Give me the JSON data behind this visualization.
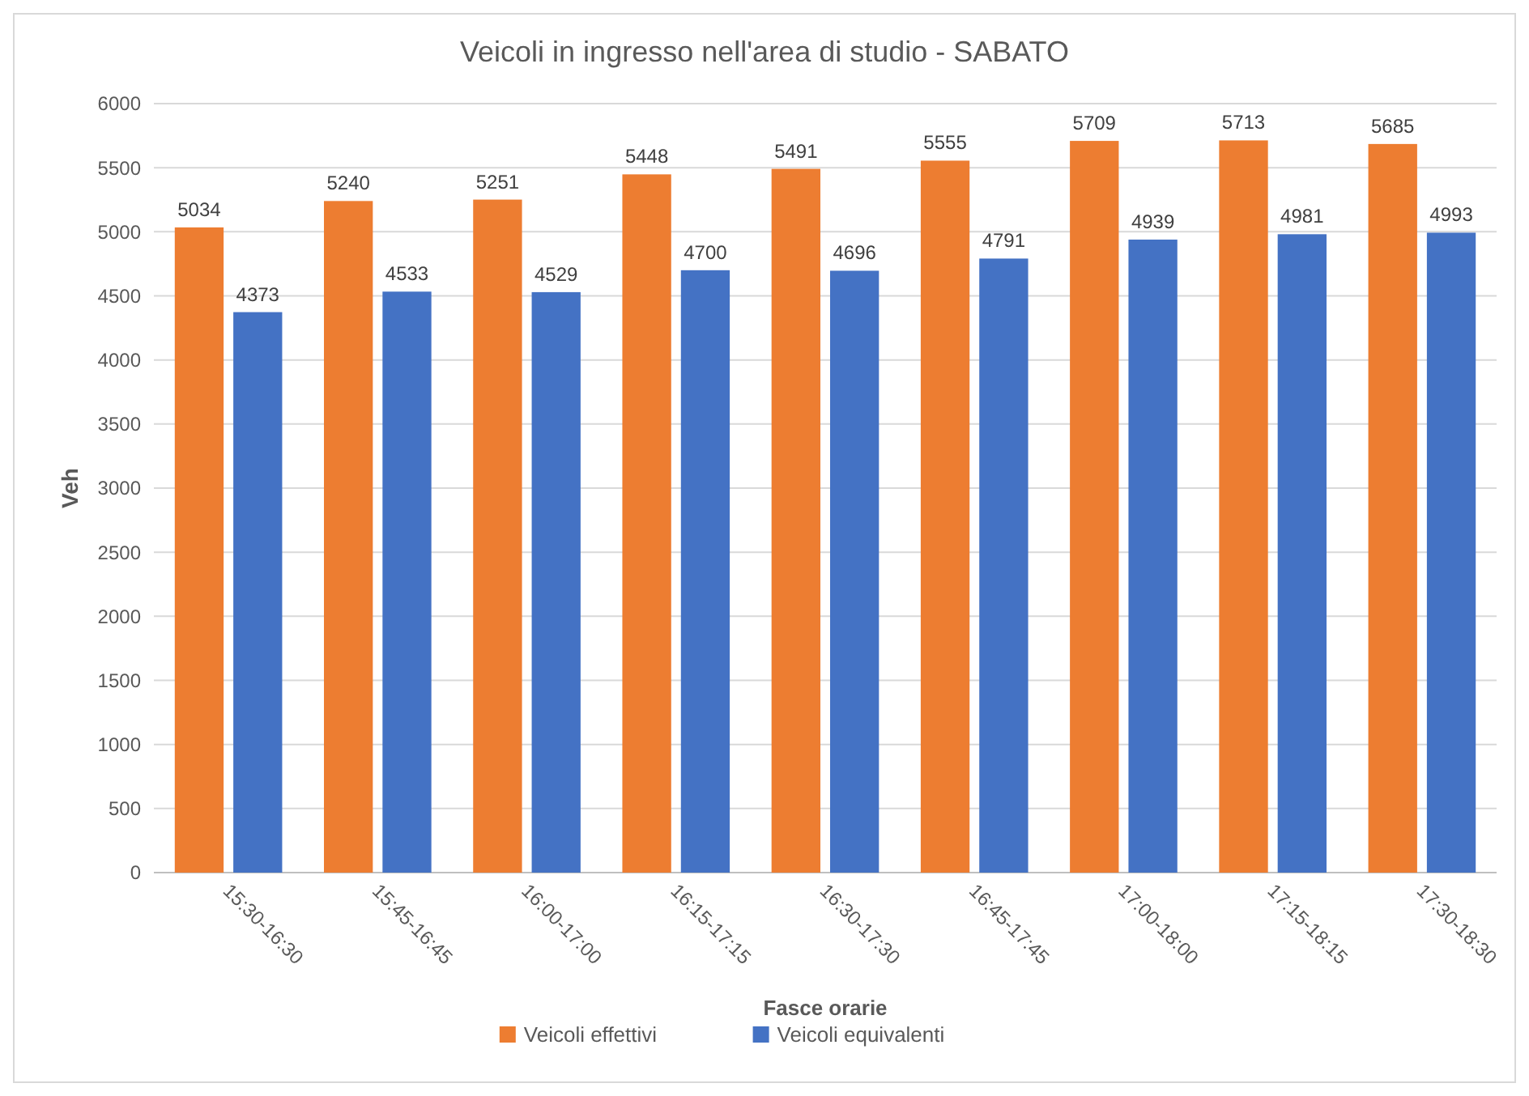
{
  "chart_data": {
    "type": "bar",
    "title": "Veicoli in ingresso nell'area di studio - SABATO",
    "xlabel": "Fasce orarie",
    "ylabel": "Veh",
    "categories": [
      "15:30-16:30",
      "15:45-16:45",
      "16:00-17:00",
      "16:15-17:15",
      "16:30-17:30",
      "16:45-17:45",
      "17:00-18:00",
      "17:15-18:15",
      "17:30-18:30"
    ],
    "series": [
      {
        "name": "Veicoli effettivi",
        "color": "#ed7d31",
        "values": [
          5034,
          5240,
          5251,
          5448,
          5491,
          5555,
          5709,
          5713,
          5685
        ]
      },
      {
        "name": "Veicoli equivalenti",
        "color": "#4472c4",
        "values": [
          4373,
          4533,
          4529,
          4700,
          4696,
          4791,
          4939,
          4981,
          4993
        ]
      }
    ],
    "ylim": [
      0,
      6000
    ],
    "yticks": [
      0,
      500,
      1000,
      1500,
      2000,
      2500,
      3000,
      3500,
      4000,
      4500,
      5000,
      5500,
      6000
    ],
    "grid": "y",
    "legend": "bottom",
    "data_labels": true
  }
}
